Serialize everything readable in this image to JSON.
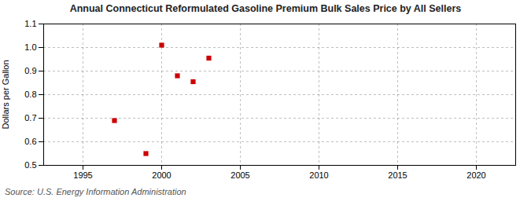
{
  "chart_data": {
    "type": "scatter",
    "title": "Annual Connecticut Reformulated Gasoline Premium Bulk Sales Price by All Sellers",
    "y_label": "Dollars per Gallon",
    "source": "Source: U.S. Energy Information Administration",
    "x": [
      1997,
      1999,
      2000,
      2001,
      2002,
      2003
    ],
    "values": [
      0.69,
      0.55,
      1.01,
      0.88,
      0.855,
      0.955
    ],
    "color": "#cc0000",
    "marker": "square",
    "xlim": [
      1992.5,
      2022.5
    ],
    "ylim": [
      0.5,
      1.1
    ],
    "xticks": [
      1995,
      2000,
      2005,
      2010,
      2015,
      2020
    ],
    "yticks": [
      0.5,
      0.6,
      0.7,
      0.8,
      0.9,
      {
        "value": 1.0,
        "label": "1.0"
      },
      1.1
    ],
    "grid": true
  }
}
